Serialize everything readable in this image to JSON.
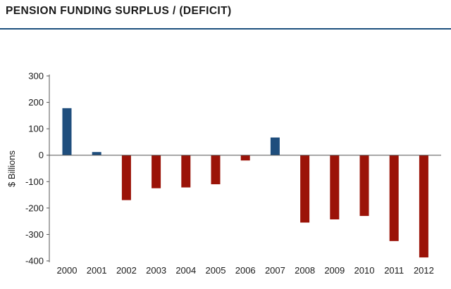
{
  "chart_data": {
    "type": "bar",
    "title": "PENSION FUNDING SURPLUS / (DEFICIT)",
    "xlabel": "",
    "ylabel": "$ Billions",
    "categories": [
      "2000",
      "2001",
      "2002",
      "2003",
      "2004",
      "2005",
      "2006",
      "2007",
      "2008",
      "2009",
      "2010",
      "2011",
      "2012"
    ],
    "values": [
      178,
      12,
      -170,
      -125,
      -122,
      -110,
      -20,
      67,
      -255,
      -243,
      -230,
      -325,
      -387
    ],
    "ylim": [
      -400,
      300
    ],
    "yticks": [
      300,
      200,
      100,
      0,
      -100,
      -200,
      -300,
      -400
    ],
    "grid": false,
    "colors": {
      "positive": "#1f4e7d",
      "negative": "#9b1308",
      "axis": "#555555",
      "title_rule": "#1c4f7d"
    }
  }
}
